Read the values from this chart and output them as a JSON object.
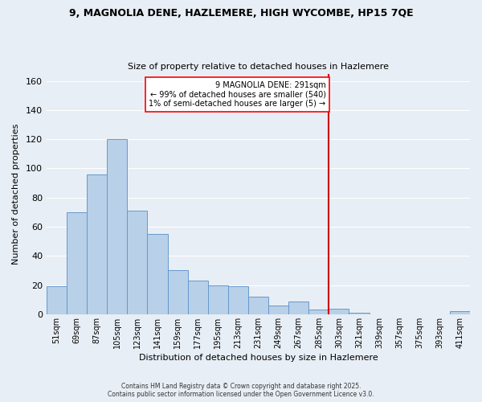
{
  "title": "9, MAGNOLIA DENE, HAZLEMERE, HIGH WYCOMBE, HP15 7QE",
  "subtitle": "Size of property relative to detached houses in Hazlemere",
  "xlabel": "Distribution of detached houses by size in Hazlemere",
  "ylabel": "Number of detached properties",
  "bar_color": "#b8d0e8",
  "bar_edge_color": "#6699cc",
  "background_color": "#e8eef5",
  "grid_color": "#ffffff",
  "categories": [
    "51sqm",
    "69sqm",
    "87sqm",
    "105sqm",
    "123sqm",
    "141sqm",
    "159sqm",
    "177sqm",
    "195sqm",
    "213sqm",
    "231sqm",
    "249sqm",
    "267sqm",
    "285sqm",
    "303sqm",
    "321sqm",
    "339sqm",
    "357sqm",
    "375sqm",
    "393sqm",
    "411sqm"
  ],
  "values": [
    19,
    70,
    96,
    120,
    71,
    55,
    30,
    23,
    20,
    19,
    12,
    6,
    9,
    3,
    4,
    1,
    0,
    0,
    0,
    0,
    2
  ],
  "ylim": [
    0,
    165
  ],
  "yticks": [
    0,
    20,
    40,
    60,
    80,
    100,
    120,
    140,
    160
  ],
  "vline_x_index": 14,
  "vline_color": "#cc0000",
  "annotation_text": "9 MAGNOLIA DENE: 291sqm\n← 99% of detached houses are smaller (540)\n1% of semi-detached houses are larger (5) →",
  "footer_line1": "Contains HM Land Registry data © Crown copyright and database right 2025.",
  "footer_line2": "Contains public sector information licensed under the Open Government Licence v3.0."
}
